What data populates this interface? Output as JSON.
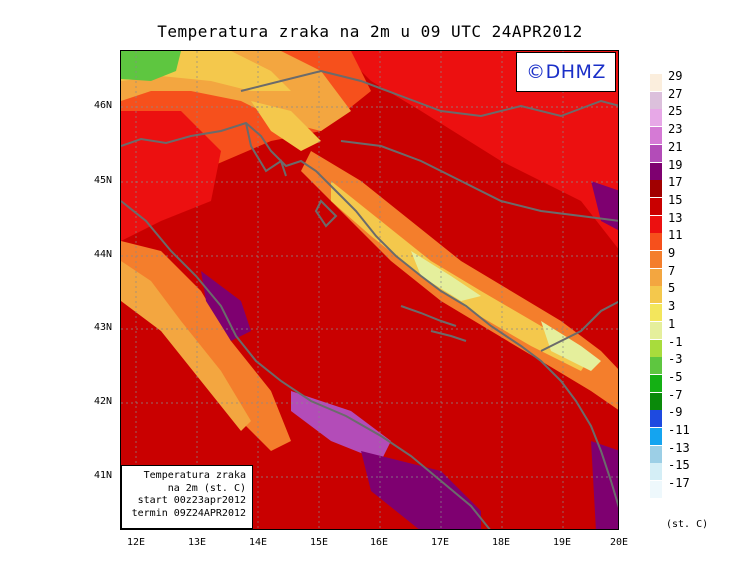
{
  "title": "Temperatura zraka na 2m u 09 UTC 24APR2012",
  "badge": "©DHMZ",
  "info_box": {
    "line1": "Temperatura zraka",
    "line2": "na 2m (st. C)",
    "line3": "start 00z23apr2012",
    "line4": "termin 09Z24APR2012"
  },
  "axes": {
    "y_ticks": [
      "46N",
      "45N",
      "44N",
      "43N",
      "42N",
      "41N"
    ],
    "x_ticks": [
      "12E",
      "13E",
      "14E",
      "15E",
      "16E",
      "17E",
      "18E",
      "19E",
      "20E"
    ]
  },
  "legend": {
    "labels": [
      "29",
      "27",
      "25",
      "23",
      "21",
      "19",
      "17",
      "15",
      "13",
      "11",
      "9",
      "7",
      "5",
      "3",
      "1",
      "-1",
      "-3",
      "-5",
      "-7",
      "-9",
      "-11",
      "-13",
      "-15",
      "-17"
    ],
    "colors": [
      "#fbeedd",
      "#dcc0dc",
      "#e7a8e7",
      "#d57ad5",
      "#b34cb8",
      "#7e0070",
      "#a10000",
      "#c90000",
      "#ec1010",
      "#f6501c",
      "#f47e2c",
      "#f3a640",
      "#f4c84c",
      "#f3e65c",
      "#e5ef9c",
      "#a8dc3c",
      "#5ec640",
      "#14b014",
      "#0a8a0a",
      "#1e4ae0",
      "#14a4f0",
      "#9ccfe6",
      "#d4eef6",
      "#eef8fc"
    ],
    "unit": "(st. C)"
  },
  "colors": {
    "sea_warm": "#c90000",
    "land_hot": "#ec1010",
    "coast_cool": "#f47e2c",
    "mountain": "#f4c84c",
    "mountain_peak": "#e5ef9c",
    "alpine_cold": "#5ec640",
    "sea_hot": "#7e0070",
    "coastline": "#6b6b6b"
  }
}
